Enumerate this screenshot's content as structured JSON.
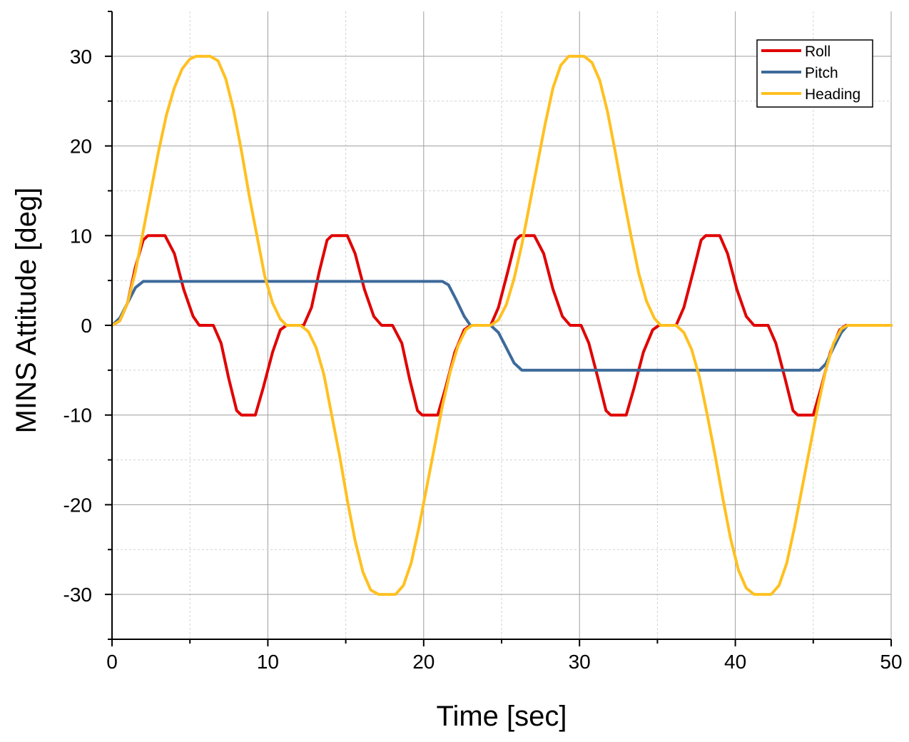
{
  "chart_data": {
    "type": "line",
    "title": "",
    "xlabel": "Time [sec]",
    "ylabel": "MINS Attitude [deg]",
    "xlim": [
      0,
      50
    ],
    "ylim": [
      -35,
      35
    ],
    "x_ticks": [
      0,
      10,
      20,
      30,
      40,
      50
    ],
    "y_ticks": [
      -30,
      -20,
      -10,
      0,
      10,
      20,
      30
    ],
    "x_minor_step": 5,
    "y_minor_step": 5,
    "grid": true,
    "legend_position": "top-right",
    "series": [
      {
        "name": "Roll",
        "color": "#e00000",
        "points": [
          [
            0,
            0
          ],
          [
            0.5,
            0.5
          ],
          [
            1,
            2.5
          ],
          [
            1.5,
            6.5
          ],
          [
            2,
            9.5
          ],
          [
            2.3,
            10
          ],
          [
            3.4,
            10
          ],
          [
            4,
            8
          ],
          [
            4.6,
            4
          ],
          [
            5.2,
            1
          ],
          [
            5.6,
            0
          ],
          [
            6.5,
            0
          ],
          [
            7,
            -2
          ],
          [
            7.5,
            -6
          ],
          [
            8,
            -9.5
          ],
          [
            8.3,
            -10
          ],
          [
            9.2,
            -10
          ],
          [
            9.7,
            -7
          ],
          [
            10.3,
            -3
          ],
          [
            10.8,
            -0.5
          ],
          [
            11.2,
            0
          ],
          [
            12.3,
            0
          ],
          [
            12.8,
            2
          ],
          [
            13.3,
            6
          ],
          [
            13.8,
            9.5
          ],
          [
            14.1,
            10
          ],
          [
            15.1,
            10
          ],
          [
            15.6,
            8
          ],
          [
            16.2,
            4
          ],
          [
            16.8,
            1
          ],
          [
            17.3,
            0
          ],
          [
            18,
            0
          ],
          [
            18.6,
            -2
          ],
          [
            19.1,
            -6
          ],
          [
            19.6,
            -9.5
          ],
          [
            19.9,
            -10
          ],
          [
            20.9,
            -10
          ],
          [
            21.4,
            -7
          ],
          [
            22,
            -3
          ],
          [
            22.6,
            -0.5
          ],
          [
            23,
            0
          ],
          [
            24.3,
            0
          ],
          [
            24.8,
            2
          ],
          [
            25.4,
            6
          ],
          [
            25.9,
            9.5
          ],
          [
            26.2,
            10
          ],
          [
            27.1,
            10
          ],
          [
            27.7,
            8
          ],
          [
            28.3,
            4
          ],
          [
            28.9,
            1
          ],
          [
            29.4,
            0
          ],
          [
            30.1,
            0
          ],
          [
            30.6,
            -2
          ],
          [
            31.2,
            -6
          ],
          [
            31.7,
            -9.5
          ],
          [
            32,
            -10
          ],
          [
            33,
            -10
          ],
          [
            33.5,
            -7
          ],
          [
            34.1,
            -3
          ],
          [
            34.7,
            -0.5
          ],
          [
            35.1,
            0
          ],
          [
            36.2,
            0
          ],
          [
            36.7,
            2
          ],
          [
            37.3,
            6
          ],
          [
            37.8,
            9.5
          ],
          [
            38.1,
            10
          ],
          [
            39,
            10
          ],
          [
            39.5,
            8
          ],
          [
            40.1,
            4
          ],
          [
            40.7,
            1
          ],
          [
            41.2,
            0
          ],
          [
            42.1,
            0
          ],
          [
            42.6,
            -2
          ],
          [
            43.2,
            -6
          ],
          [
            43.7,
            -9.5
          ],
          [
            44,
            -10
          ],
          [
            45,
            -10
          ],
          [
            45.5,
            -7
          ],
          [
            46.1,
            -3
          ],
          [
            46.7,
            -0.5
          ],
          [
            47.1,
            0
          ],
          [
            50,
            0
          ]
        ]
      },
      {
        "name": "Pitch",
        "color": "#3d6a9a",
        "points": [
          [
            0,
            0
          ],
          [
            0.5,
            0.8
          ],
          [
            1,
            2.5
          ],
          [
            1.5,
            4.2
          ],
          [
            2,
            4.9
          ],
          [
            21.2,
            4.9
          ],
          [
            21.6,
            4.5
          ],
          [
            22.1,
            2.8
          ],
          [
            22.6,
            1
          ],
          [
            23,
            0
          ],
          [
            24.3,
            0
          ],
          [
            24.8,
            -0.8
          ],
          [
            25.3,
            -2.5
          ],
          [
            25.8,
            -4.2
          ],
          [
            26.3,
            -5
          ],
          [
            45.4,
            -5
          ],
          [
            45.8,
            -4.3
          ],
          [
            46.3,
            -2.5
          ],
          [
            46.8,
            -0.8
          ],
          [
            47.2,
            0
          ],
          [
            50,
            0
          ]
        ]
      },
      {
        "name": "Heading",
        "color": "#ffc020",
        "points": [
          [
            0,
            0
          ],
          [
            0.5,
            0.5
          ],
          [
            1,
            2.5
          ],
          [
            1.5,
            6
          ],
          [
            2,
            10.5
          ],
          [
            2.5,
            15
          ],
          [
            3,
            19.5
          ],
          [
            3.5,
            23.5
          ],
          [
            4,
            26.5
          ],
          [
            4.5,
            28.6
          ],
          [
            5,
            29.7
          ],
          [
            5.4,
            30
          ],
          [
            6.3,
            30
          ],
          [
            6.8,
            29.5
          ],
          [
            7.3,
            27.5
          ],
          [
            7.8,
            24
          ],
          [
            8.3,
            19.5
          ],
          [
            8.8,
            14.5
          ],
          [
            9.3,
            10
          ],
          [
            9.8,
            5.5
          ],
          [
            10.3,
            2.5
          ],
          [
            10.8,
            0.7
          ],
          [
            11.2,
            0
          ],
          [
            12.1,
            0
          ],
          [
            12.6,
            -0.7
          ],
          [
            13.1,
            -2.5
          ],
          [
            13.6,
            -5.5
          ],
          [
            14.1,
            -10
          ],
          [
            14.6,
            -14.5
          ],
          [
            15.1,
            -19.5
          ],
          [
            15.6,
            -24
          ],
          [
            16.1,
            -27.5
          ],
          [
            16.6,
            -29.5
          ],
          [
            17.1,
            -30
          ],
          [
            18.2,
            -30
          ],
          [
            18.7,
            -29
          ],
          [
            19.2,
            -26.5
          ],
          [
            19.7,
            -22.5
          ],
          [
            20.2,
            -18
          ],
          [
            20.7,
            -13.5
          ],
          [
            21.2,
            -9
          ],
          [
            21.7,
            -5.2
          ],
          [
            22.2,
            -2.3
          ],
          [
            22.7,
            -0.5
          ],
          [
            23.1,
            0
          ],
          [
            24.3,
            0
          ],
          [
            24.8,
            0.6
          ],
          [
            25.3,
            2.3
          ],
          [
            25.8,
            5.2
          ],
          [
            26.3,
            9
          ],
          [
            26.8,
            13.5
          ],
          [
            27.3,
            18
          ],
          [
            27.8,
            22.5
          ],
          [
            28.3,
            26.5
          ],
          [
            28.8,
            29
          ],
          [
            29.3,
            30
          ],
          [
            30.3,
            30
          ],
          [
            30.8,
            29.3
          ],
          [
            31.3,
            27.3
          ],
          [
            31.8,
            23.8
          ],
          [
            32.3,
            19.3
          ],
          [
            32.8,
            14.5
          ],
          [
            33.3,
            10
          ],
          [
            33.8,
            5.8
          ],
          [
            34.3,
            2.7
          ],
          [
            34.8,
            0.8
          ],
          [
            35.2,
            0
          ],
          [
            36.2,
            0
          ],
          [
            36.7,
            -0.8
          ],
          [
            37.2,
            -2.7
          ],
          [
            37.7,
            -5.8
          ],
          [
            38.2,
            -10
          ],
          [
            38.7,
            -14.5
          ],
          [
            39.2,
            -19.3
          ],
          [
            39.7,
            -23.8
          ],
          [
            40.2,
            -27.3
          ],
          [
            40.7,
            -29.3
          ],
          [
            41.2,
            -30
          ],
          [
            42.3,
            -30
          ],
          [
            42.8,
            -29
          ],
          [
            43.3,
            -26.5
          ],
          [
            43.8,
            -22.5
          ],
          [
            44.3,
            -18
          ],
          [
            44.8,
            -13.5
          ],
          [
            45.3,
            -9
          ],
          [
            45.8,
            -5
          ],
          [
            46.3,
            -2
          ],
          [
            46.8,
            -0.4
          ],
          [
            47.2,
            0
          ],
          [
            50,
            0
          ]
        ]
      }
    ]
  }
}
